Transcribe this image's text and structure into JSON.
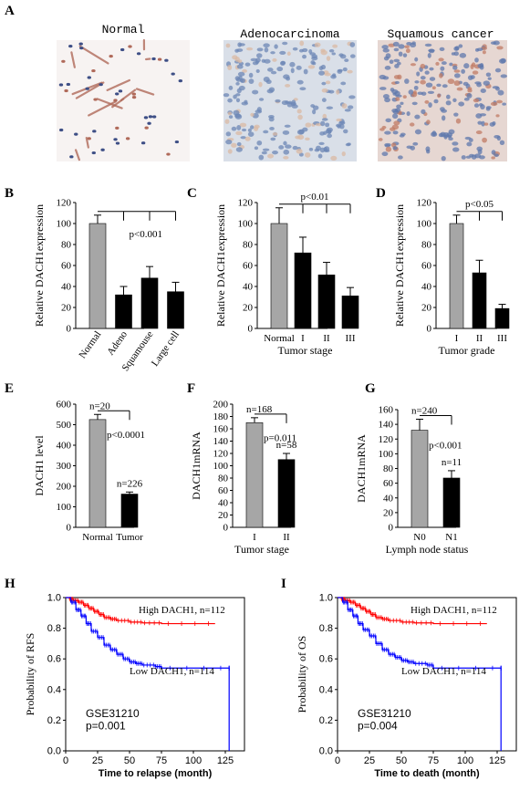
{
  "panel_letters": [
    "A",
    "B",
    "C",
    "D",
    "E",
    "F",
    "G",
    "H",
    "I"
  ],
  "micrographs": [
    {
      "label": "Normal",
      "bg": "#f7f3f2",
      "cell": "#3e4f86",
      "stain": "#b06a5a"
    },
    {
      "label": "Adenocarcinoma",
      "bg": "#d9dfe8",
      "cell": "#6c87b5",
      "stain": "#d9b9a4"
    },
    {
      "label": "Squamous cancer",
      "bg": "#e6d7d2",
      "cell": "#5f78ac",
      "stain": "#c07b64"
    }
  ],
  "chart_data": [
    {
      "panel": "B",
      "type": "bar",
      "categories": [
        "Normal",
        "Adeno",
        "Squamouse",
        "Large cell"
      ],
      "values": [
        100,
        32,
        48,
        35
      ],
      "errors": [
        8,
        8,
        11,
        9
      ],
      "colors": [
        "#a6a6a6",
        "#000000",
        "#000000",
        "#000000"
      ],
      "ylabel": "Relative DACH1expression",
      "ylim": [
        0,
        120
      ],
      "yticks": [
        0,
        20,
        40,
        60,
        80,
        100,
        120
      ],
      "annotation": "p<0.001",
      "xlabel": ""
    },
    {
      "panel": "C",
      "type": "bar",
      "categories": [
        "Normal",
        "I",
        "II",
        "III"
      ],
      "values": [
        100,
        72,
        51,
        31
      ],
      "errors": [
        15,
        15,
        12,
        8
      ],
      "colors": [
        "#a6a6a6",
        "#000000",
        "#000000",
        "#000000"
      ],
      "ylabel": "Relative DACH1expression",
      "ylim": [
        0,
        120
      ],
      "yticks": [
        0,
        20,
        40,
        60,
        80,
        100,
        120
      ],
      "annotation": "p<0.01",
      "xlabel": "Tumor stage"
    },
    {
      "panel": "D",
      "type": "bar",
      "categories": [
        "I",
        "II",
        "III"
      ],
      "values": [
        100,
        53,
        19
      ],
      "errors": [
        8,
        12,
        4
      ],
      "colors": [
        "#a6a6a6",
        "#000000",
        "#000000"
      ],
      "ylabel": "Relative DACH1expression",
      "ylim": [
        0,
        120
      ],
      "yticks": [
        0,
        20,
        40,
        60,
        80,
        100,
        120
      ],
      "annotation": "p<0.05",
      "xlabel": "Tumor grade"
    },
    {
      "panel": "E",
      "type": "bar",
      "categories": [
        "Normal",
        "Tumor"
      ],
      "values": [
        525,
        162
      ],
      "errors": [
        25,
        10
      ],
      "colors": [
        "#a6a6a6",
        "#000000"
      ],
      "ylabel": "DACH1  level",
      "ylim": [
        0,
        600
      ],
      "yticks": [
        0,
        100,
        200,
        300,
        400,
        500,
        600
      ],
      "annotation": "p<0.0001",
      "n_labels": [
        "n=20",
        "n=226"
      ],
      "xlabel": ""
    },
    {
      "panel": "F",
      "type": "bar",
      "categories": [
        "I",
        "II"
      ],
      "values": [
        170,
        110
      ],
      "errors": [
        8,
        10
      ],
      "colors": [
        "#a6a6a6",
        "#000000"
      ],
      "ylabel": "DACH1mRNA",
      "ylim": [
        0,
        200
      ],
      "yticks": [
        0,
        20,
        40,
        60,
        80,
        100,
        120,
        140,
        160,
        180,
        200
      ],
      "annotation": "p=0.011",
      "n_labels": [
        "n=168",
        "n=58"
      ],
      "xlabel": "Tumor stage"
    },
    {
      "panel": "G",
      "type": "bar",
      "categories": [
        "N0",
        "N1"
      ],
      "values": [
        132,
        67
      ],
      "errors": [
        15,
        10
      ],
      "colors": [
        "#a6a6a6",
        "#000000"
      ],
      "ylabel": "DACH1mRNA",
      "ylim": [
        0,
        160
      ],
      "yticks": [
        0,
        20,
        40,
        60,
        80,
        100,
        120,
        140,
        160
      ],
      "annotation": "p<0.001",
      "n_labels": [
        "n=240",
        "n=11"
      ],
      "xlabel": "Lymph node status"
    },
    {
      "panel": "H",
      "type": "line",
      "ylabel": "Probability of RFS",
      "xlabel": "Time to relapse (month)",
      "xlim": [
        0,
        140
      ],
      "ylim": [
        0,
        1
      ],
      "xticks": [
        0,
        25,
        50,
        75,
        100,
        125
      ],
      "yticks": [
        0.0,
        0.2,
        0.4,
        0.6,
        0.8,
        1.0
      ],
      "yticklabels": [
        "0.0",
        "0.2",
        "0.4",
        "0.6",
        "0.8",
        "1.0"
      ],
      "annotation": [
        "GSE31210",
        "p=0.001"
      ],
      "series": [
        {
          "name": "High DACH1, n=112",
          "color": "#ff0000",
          "x": [
            0,
            3,
            6,
            10,
            14,
            18,
            22,
            26,
            30,
            35,
            40,
            50,
            60,
            75,
            117
          ],
          "y": [
            1.0,
            0.99,
            0.98,
            0.97,
            0.95,
            0.93,
            0.91,
            0.89,
            0.87,
            0.86,
            0.85,
            0.84,
            0.835,
            0.83,
            0.83
          ]
        },
        {
          "name": "Low DACH1, n=114",
          "color": "#0000ff",
          "x": [
            0,
            4,
            8,
            12,
            16,
            20,
            25,
            30,
            35,
            40,
            45,
            50,
            55,
            60,
            70,
            75,
            128,
            128
          ],
          "y": [
            1.0,
            0.97,
            0.92,
            0.88,
            0.83,
            0.78,
            0.74,
            0.69,
            0.66,
            0.63,
            0.6,
            0.58,
            0.57,
            0.56,
            0.55,
            0.54,
            0.54,
            0.0
          ]
        }
      ]
    },
    {
      "panel": "I",
      "type": "line",
      "ylabel": "Probability of OS",
      "xlabel": "Time to death (month)",
      "xlim": [
        0,
        140
      ],
      "ylim": [
        0,
        1
      ],
      "xticks": [
        0,
        25,
        50,
        75,
        100,
        125
      ],
      "yticks": [
        0.0,
        0.2,
        0.4,
        0.6,
        0.8,
        1.0
      ],
      "yticklabels": [
        "0.0",
        "0.2",
        "0.4",
        "0.6",
        "0.8",
        "1.0"
      ],
      "annotation": [
        "GSE31210",
        "p=0.004"
      ],
      "series": [
        {
          "name": "High DACH1, n=112",
          "color": "#ff0000",
          "x": [
            0,
            3,
            6,
            10,
            14,
            18,
            22,
            26,
            30,
            35,
            40,
            50,
            60,
            75,
            117
          ],
          "y": [
            1.0,
            0.99,
            0.98,
            0.97,
            0.95,
            0.93,
            0.91,
            0.89,
            0.87,
            0.86,
            0.85,
            0.84,
            0.835,
            0.83,
            0.83
          ]
        },
        {
          "name": "Low DACH1, n=114",
          "color": "#0000ff",
          "x": [
            0,
            4,
            8,
            12,
            16,
            20,
            25,
            30,
            35,
            40,
            45,
            50,
            55,
            60,
            70,
            75,
            128,
            128
          ],
          "y": [
            1.0,
            0.97,
            0.92,
            0.88,
            0.83,
            0.79,
            0.75,
            0.7,
            0.66,
            0.63,
            0.61,
            0.59,
            0.58,
            0.57,
            0.56,
            0.54,
            0.54,
            0.0
          ]
        }
      ]
    }
  ]
}
